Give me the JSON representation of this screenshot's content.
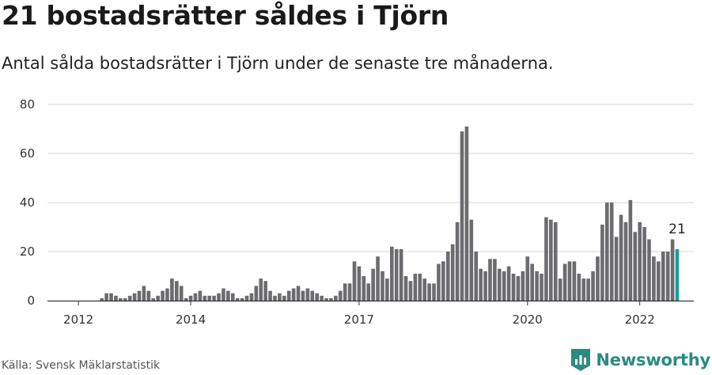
{
  "header": {
    "title": "21 bostadsrätter såldes i Tjörn",
    "subtitle": "Antal sålda bostadsrätter i Tjörn under de senaste tre månaderna."
  },
  "footer": {
    "source": "Källa: Svensk Mäklarstatistik",
    "brand": "Newsworthy"
  },
  "colors": {
    "bar": "#6b6b70",
    "highlight": "#1a9e94",
    "grid": "#d6d6d6",
    "brand": "#2b8b80"
  },
  "chart_data": {
    "type": "bar",
    "title": "21 bostadsrätter såldes i Tjörn",
    "xlabel": "",
    "ylabel": "",
    "ylim": [
      0,
      80
    ],
    "yticks": [
      0,
      20,
      40,
      60,
      80
    ],
    "x_tick_labels": [
      {
        "label": "2012",
        "index": 2
      },
      {
        "label": "2014",
        "index": 26
      },
      {
        "label": "2017",
        "index": 62
      },
      {
        "label": "2020",
        "index": 98
      },
      {
        "label": "2022",
        "index": 122
      }
    ],
    "highlight_last": true,
    "last_label": "21",
    "values": [
      0,
      0,
      0,
      0,
      0,
      0,
      0,
      1,
      3,
      3,
      2,
      1,
      1,
      2,
      3,
      4,
      6,
      4,
      1,
      2,
      4,
      5,
      9,
      8,
      6,
      1,
      2,
      3,
      4,
      2,
      2,
      2,
      3,
      5,
      4,
      3,
      1,
      1,
      2,
      3,
      6,
      9,
      8,
      4,
      2,
      3,
      2,
      4,
      5,
      6,
      4,
      5,
      4,
      3,
      2,
      1,
      1,
      2,
      4,
      7,
      7,
      16,
      14,
      10,
      7,
      13,
      18,
      12,
      9,
      22,
      21,
      21,
      10,
      8,
      11,
      11,
      9,
      7,
      7,
      15,
      16,
      20,
      23,
      32,
      69,
      71,
      33,
      20,
      13,
      12,
      17,
      17,
      13,
      12,
      14,
      11,
      10,
      12,
      18,
      15,
      12,
      11,
      34,
      33,
      32,
      9,
      15,
      16,
      16,
      11,
      9,
      9,
      12,
      18,
      31,
      40,
      40,
      26,
      35,
      32,
      41,
      28,
      32,
      30,
      25,
      18,
      16,
      20,
      20,
      25,
      21
    ]
  }
}
